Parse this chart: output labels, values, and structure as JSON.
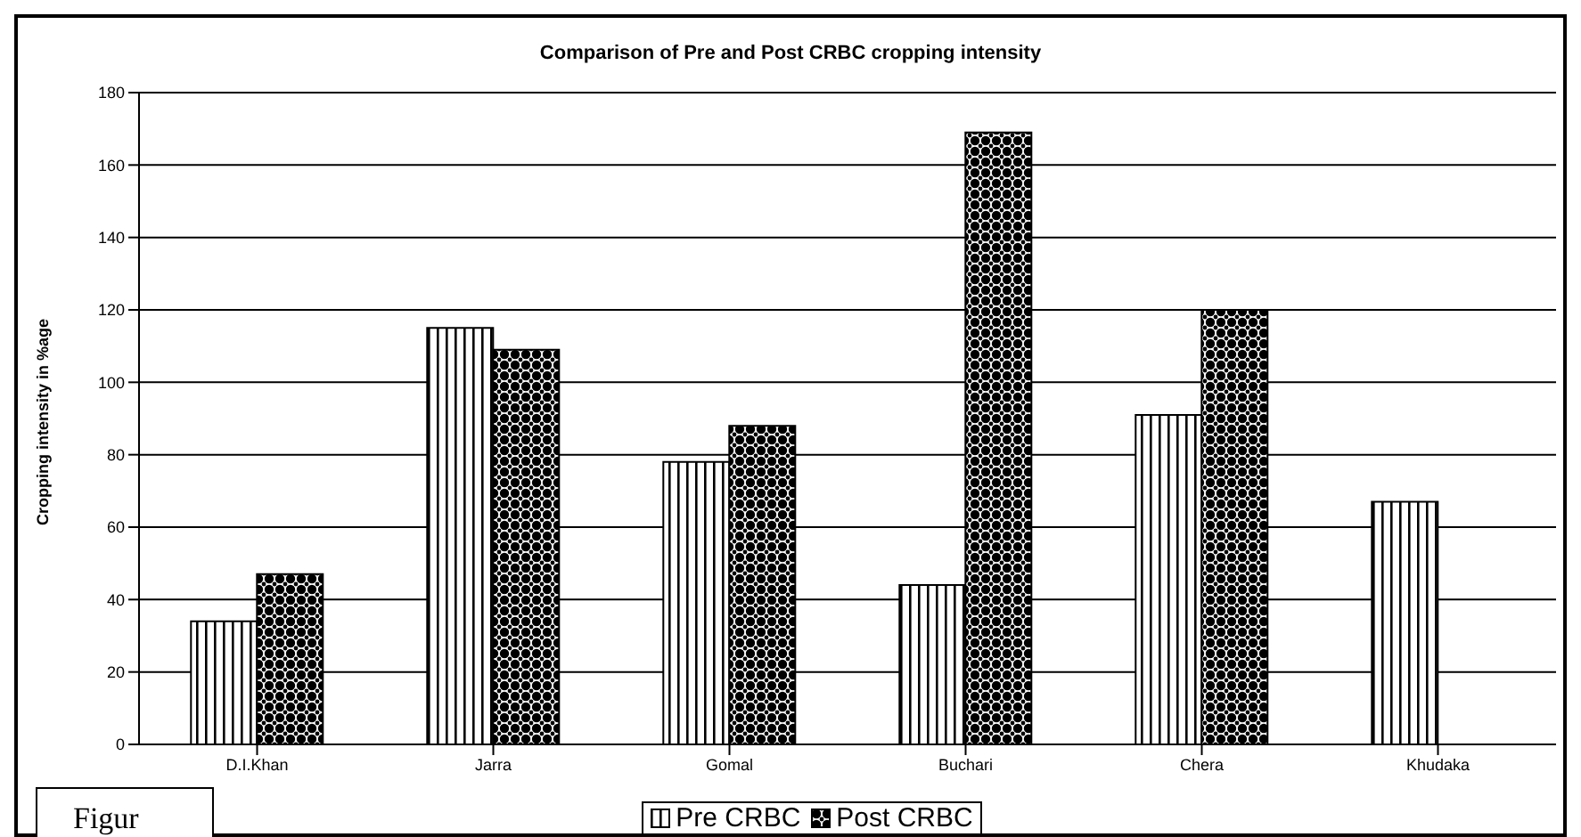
{
  "chart_data": {
    "type": "bar",
    "title": "Comparison of Pre and Post CRBC cropping intensity",
    "ylabel": "Cropping intensity in %age",
    "categories": [
      "D.I.Khan",
      "Jarra",
      "Gomal",
      "Buchari",
      "Chera",
      "Khudaka"
    ],
    "series": [
      {
        "name": "Pre CRBC",
        "color": "#000000",
        "values": [
          34,
          115,
          78,
          44,
          91,
          67
        ]
      },
      {
        "name": "Post CRBC",
        "color": "#000000",
        "values": [
          47,
          109,
          88,
          169,
          120,
          null
        ]
      }
    ],
    "ylim": [
      0,
      180
    ],
    "yticks": [
      0,
      20,
      40,
      60,
      80,
      100,
      120,
      140,
      160,
      180
    ],
    "grid": "y",
    "legend": "bottom",
    "annotations": [
      "Figur"
    ]
  }
}
